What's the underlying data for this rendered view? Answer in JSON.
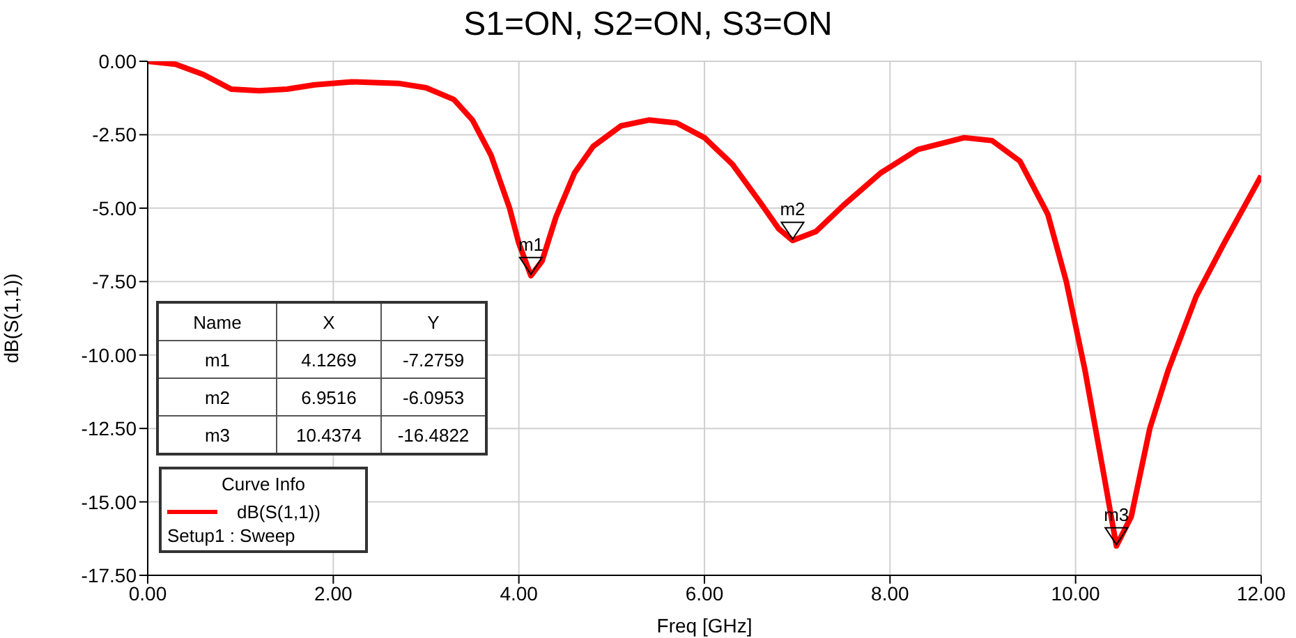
{
  "chart_data": {
    "type": "line",
    "title": "S1=ON, S2=ON, S3=ON",
    "xlabel": "Freq [GHz]",
    "ylabel": "dB(S(1,1))",
    "legend_title": "Curve Info",
    "xlim": [
      0,
      12
    ],
    "ylim": [
      -17.5,
      0
    ],
    "xticks": [
      {
        "value": 0,
        "label": "0.00"
      },
      {
        "value": 2,
        "label": "2.00"
      },
      {
        "value": 4,
        "label": "4.00"
      },
      {
        "value": 6,
        "label": "6.00"
      },
      {
        "value": 8,
        "label": "8.00"
      },
      {
        "value": 10,
        "label": "10.00"
      },
      {
        "value": 12,
        "label": "12.00"
      }
    ],
    "yticks": [
      {
        "value": 0,
        "label": "0.00"
      },
      {
        "value": -2.5,
        "label": "-2.50"
      },
      {
        "value": -5,
        "label": "-5.00"
      },
      {
        "value": -7.5,
        "label": "-7.50"
      },
      {
        "value": -10,
        "label": "-10.00"
      },
      {
        "value": -12.5,
        "label": "-12.50"
      },
      {
        "value": -15,
        "label": "-15.00"
      },
      {
        "value": -17.5,
        "label": "-17.50"
      }
    ],
    "grid": true,
    "legend": "bottom left",
    "marker": "none",
    "line_style": "solid",
    "series": [
      {
        "name": "dB(S(1,1))",
        "color": "#ff0000",
        "x": [
          0,
          0.3,
          0.6,
          0.9,
          1.2,
          1.5,
          1.8,
          2.2,
          2.7,
          3.0,
          3.3,
          3.5,
          3.7,
          3.9,
          4.0,
          4.13,
          4.25,
          4.4,
          4.6,
          4.8,
          5.1,
          5.4,
          5.7,
          6.0,
          6.3,
          6.6,
          6.8,
          6.95,
          7.2,
          7.5,
          7.9,
          8.3,
          8.8,
          9.1,
          9.4,
          9.7,
          9.9,
          10.1,
          10.3,
          10.44,
          10.6,
          10.8,
          11.0,
          11.3,
          11.6,
          12.0
        ],
        "values": [
          0,
          -0.1,
          -0.45,
          -0.95,
          -1.0,
          -0.95,
          -0.8,
          -0.7,
          -0.75,
          -0.9,
          -1.3,
          -2.0,
          -3.2,
          -5.0,
          -6.2,
          -7.3,
          -6.8,
          -5.3,
          -3.8,
          -2.9,
          -2.2,
          -2.0,
          -2.1,
          -2.6,
          -3.5,
          -4.8,
          -5.7,
          -6.1,
          -5.8,
          -4.9,
          -3.8,
          -3.0,
          -2.6,
          -2.7,
          -3.4,
          -5.2,
          -7.5,
          -10.5,
          -14.0,
          -16.5,
          -15.5,
          -12.5,
          -10.5,
          -8.0,
          -6.2,
          -3.9
        ]
      }
    ],
    "annotations": [
      {
        "text": "m1",
        "x": 4.13,
        "y": -7.3
      },
      {
        "text": "m2",
        "x": 6.95,
        "y": -6.1
      },
      {
        "text": "m3",
        "x": 10.44,
        "y": -16.5
      },
      "Name",
      "X",
      "Y",
      "m1",
      "4.1269",
      "-7.2759",
      "m2",
      "6.9516",
      "-6.0953",
      "m3",
      "10.4374",
      "-16.4822",
      "Setup1 : Sweep"
    ]
  }
}
